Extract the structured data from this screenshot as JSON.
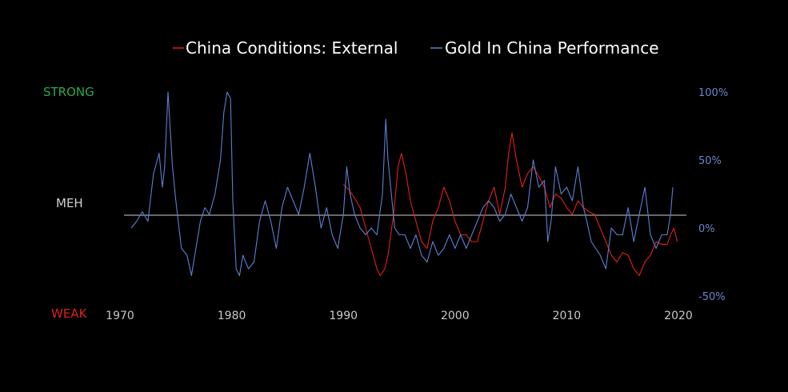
{
  "chart_data": {
    "type": "line",
    "legend": {
      "placement": "top-center"
    },
    "side_labels": {
      "top": "STRONG",
      "middle": "MEH",
      "bottom": "WEAK",
      "top_color": "#2fa84f",
      "middle_color": "#d0d0d0",
      "bottom_color": "#e0201a"
    },
    "x_ticks": [
      1970,
      1980,
      1990,
      2000,
      2010,
      2020
    ],
    "xlim": [
      1970,
      2020
    ],
    "y_right": {
      "ticks": [
        100,
        50,
        0,
        -50
      ],
      "tick_labels": [
        "100%",
        "50%",
        "0%",
        "-50%"
      ],
      "ylim": [
        -50,
        100
      ]
    },
    "series": [
      {
        "name": "China Conditions: External",
        "color": "#e0201a",
        "x": [
          1990.0,
          1990.5,
          1991.0,
          1991.5,
          1992.0,
          1992.5,
          1993.0,
          1993.3,
          1993.7,
          1994.0,
          1994.5,
          1994.9,
          1995.2,
          1995.6,
          1996.0,
          1996.5,
          1997.0,
          1997.5,
          1998.0,
          1998.5,
          1999.0,
          1999.5,
          2000.0,
          2000.5,
          2001.0,
          2001.5,
          2002.0,
          2002.5,
          2003.0,
          2003.5,
          2004.0,
          2004.5,
          2004.8,
          2005.1,
          2005.5,
          2006.0,
          2006.5,
          2007.0,
          2007.5,
          2008.0,
          2008.5,
          2009.0,
          2009.5,
          2010.0,
          2010.5,
          2011.0,
          2011.5,
          2012.0,
          2012.5,
          2013.0,
          2013.5,
          2014.0,
          2014.5,
          2015.0,
          2015.5,
          2016.0,
          2016.5,
          2017.0,
          2017.5,
          2018.0,
          2018.5,
          2019.0,
          2019.3,
          2019.6,
          2019.9
        ],
        "y": [
          32,
          28,
          22,
          15,
          0,
          -15,
          -30,
          -35,
          -30,
          -20,
          10,
          45,
          55,
          40,
          20,
          5,
          -10,
          -15,
          5,
          15,
          30,
          20,
          5,
          -5,
          -5,
          -10,
          -10,
          5,
          20,
          30,
          10,
          30,
          55,
          70,
          50,
          30,
          40,
          45,
          38,
          30,
          15,
          25,
          22,
          15,
          10,
          20,
          15,
          12,
          10,
          0,
          -10,
          -20,
          -25,
          -18,
          -20,
          -30,
          -35,
          -25,
          -20,
          -10,
          -12,
          -12,
          -5,
          0,
          -10
        ]
      },
      {
        "name": "Gold In China Performance",
        "color": "#5b7fd1",
        "x": [
          1971.0,
          1971.5,
          1972.0,
          1972.5,
          1973.0,
          1973.5,
          1973.8,
          1974.0,
          1974.3,
          1974.7,
          1975.0,
          1975.5,
          1976.0,
          1976.4,
          1976.8,
          1977.2,
          1977.6,
          1978.0,
          1978.5,
          1979.0,
          1979.3,
          1979.6,
          1979.9,
          1980.1,
          1980.4,
          1980.7,
          1981.0,
          1981.5,
          1982.0,
          1982.5,
          1983.0,
          1983.5,
          1984.0,
          1984.5,
          1985.0,
          1985.5,
          1986.0,
          1986.5,
          1987.0,
          1987.5,
          1988.0,
          1988.5,
          1989.0,
          1989.5,
          1990.0,
          1990.3,
          1990.6,
          1991.0,
          1991.5,
          1992.0,
          1992.5,
          1993.0,
          1993.5,
          1993.8,
          1994.0,
          1994.3,
          1994.6,
          1995.0,
          1995.5,
          1996.0,
          1996.5,
          1997.0,
          1997.5,
          1998.0,
          1998.5,
          1999.0,
          1999.5,
          2000.0,
          2000.5,
          2001.0,
          2001.5,
          2002.0,
          2002.5,
          2003.0,
          2003.5,
          2004.0,
          2004.5,
          2005.0,
          2005.5,
          2006.0,
          2006.5,
          2007.0,
          2007.5,
          2008.0,
          2008.3,
          2008.6,
          2009.0,
          2009.5,
          2010.0,
          2010.5,
          2011.0,
          2011.5,
          2011.8,
          2012.2,
          2012.6,
          2013.0,
          2013.5,
          2014.0,
          2014.5,
          2015.0,
          2015.5,
          2016.0,
          2016.5,
          2017.0,
          2017.5,
          2018.0,
          2018.5,
          2019.0,
          2019.3,
          2019.5
        ],
        "y": [
          0,
          5,
          12,
          5,
          40,
          55,
          30,
          45,
          100,
          45,
          20,
          -15,
          -20,
          -35,
          -15,
          5,
          15,
          10,
          25,
          50,
          85,
          100,
          95,
          20,
          -30,
          -35,
          -20,
          -30,
          -25,
          5,
          20,
          5,
          -15,
          15,
          30,
          20,
          10,
          30,
          55,
          30,
          0,
          15,
          -5,
          -15,
          10,
          45,
          25,
          10,
          0,
          -5,
          0,
          -5,
          25,
          80,
          50,
          25,
          0,
          -5,
          -5,
          -15,
          -5,
          -20,
          -25,
          -10,
          -20,
          -15,
          -5,
          -15,
          -5,
          -15,
          -5,
          5,
          15,
          20,
          15,
          5,
          10,
          25,
          15,
          5,
          15,
          50,
          30,
          35,
          -10,
          5,
          45,
          25,
          30,
          20,
          45,
          15,
          5,
          -10,
          -15,
          -20,
          -30,
          0,
          -5,
          -5,
          15,
          -10,
          10,
          30,
          -5,
          -15,
          -5,
          -5,
          10,
          30
        ]
      }
    ]
  }
}
